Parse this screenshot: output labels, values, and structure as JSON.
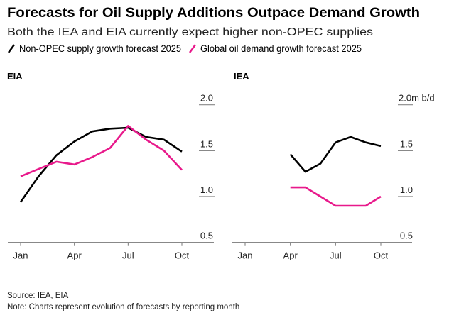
{
  "title": "Forecasts for Oil Supply Additions Outpace Demand Growth",
  "subtitle": "Both the IEA and EIA currently expect higher non-OPEC supplies",
  "legend": [
    {
      "label": "Non-OPEC supply growth forecast 2025",
      "color": "#000000"
    },
    {
      "label": "Global oil demand growth forecast 2025",
      "color": "#e8198b"
    }
  ],
  "footer": {
    "source": "Source: IEA, EIA",
    "note": "Note: Charts represent evolution of forecasts by reporting month"
  },
  "chart_data": [
    {
      "type": "line",
      "title": "EIA",
      "x": [
        "Jan",
        "Feb",
        "Mar",
        "Apr",
        "May",
        "Jun",
        "Jul",
        "Aug",
        "Sep",
        "Oct"
      ],
      "xticks": [
        "Jan",
        "Apr",
        "Jul",
        "Oct"
      ],
      "yticks": [
        "0.5",
        "1.0",
        "1.5",
        "2.0"
      ],
      "ylim": [
        0.5,
        2.0
      ],
      "yunit": "",
      "series": [
        {
          "name": "Non-OPEC supply growth forecast 2025",
          "color": "#000000",
          "values": [
            0.94,
            1.22,
            1.45,
            1.6,
            1.71,
            1.74,
            1.75,
            1.65,
            1.62,
            1.49
          ]
        },
        {
          "name": "Global oil demand growth forecast 2025",
          "color": "#e8198b",
          "values": [
            1.22,
            1.3,
            1.38,
            1.35,
            1.43,
            1.53,
            1.77,
            1.62,
            1.5,
            1.29
          ]
        }
      ]
    },
    {
      "type": "line",
      "title": "IEA",
      "x": [
        "Jan",
        "Feb",
        "Mar",
        "Apr",
        "May",
        "Jun",
        "Jul",
        "Aug",
        "Sep",
        "Oct"
      ],
      "xticks": [
        "Jan",
        "Apr",
        "Jul",
        "Oct"
      ],
      "yticks": [
        "0.5",
        "1.0",
        "1.5",
        "2.0"
      ],
      "ylim": [
        0.5,
        2.0
      ],
      "yunit": "m b/d",
      "series": [
        {
          "name": "Non-OPEC supply growth forecast 2025",
          "color": "#000000",
          "values": [
            null,
            null,
            null,
            1.46,
            1.27,
            1.36,
            1.59,
            1.65,
            1.59,
            1.55
          ]
        },
        {
          "name": "Global oil demand growth forecast 2025",
          "color": "#e8198b",
          "values": [
            null,
            null,
            null,
            1.1,
            1.1,
            1.0,
            0.9,
            0.9,
            0.9,
            1.0
          ]
        }
      ]
    }
  ]
}
